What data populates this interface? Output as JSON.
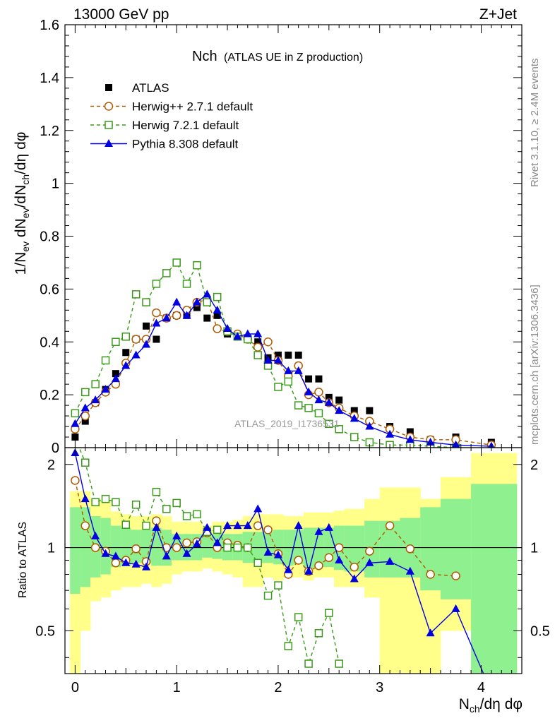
{
  "header": {
    "left": "13000 GeV pp",
    "right": "Z+Jet"
  },
  "title": {
    "main": "Nch",
    "sub": "(ATLAS UE in Z production)"
  },
  "side_labels": {
    "rivet": "Rivet 3.1.10, ≥ 2.4M events",
    "mcplots": "mcplots.cern.ch [arXiv:1306.3436]"
  },
  "watermark": "ATLAS_2019_I1736531",
  "chart_data": [
    {
      "type": "scatter",
      "panel": "main",
      "ylabel": "1/N_ev dN_ev/dN_ch/dη dφ",
      "xlim": [
        -0.1,
        4.4
      ],
      "ylim": [
        0,
        1.6
      ],
      "y_ticks": [
        "0",
        "0.2",
        "0.4",
        "0.6",
        "0.8",
        "1",
        "1.2",
        "1.4",
        "1.6"
      ],
      "legend_position": "top-left",
      "series": [
        {
          "name": "ATLAS",
          "color": "#000000",
          "marker": "filled-square",
          "x": [
            0.0,
            0.1,
            0.2,
            0.3,
            0.4,
            0.5,
            0.6,
            0.7,
            0.8,
            0.9,
            1.0,
            1.1,
            1.2,
            1.3,
            1.4,
            1.5,
            1.6,
            1.7,
            1.8,
            1.9,
            2.0,
            2.1,
            2.2,
            2.3,
            2.4,
            2.5,
            2.6,
            2.75,
            2.9,
            3.1,
            3.3,
            3.5,
            3.75,
            4.1
          ],
          "y": [
            0.04,
            0.1,
            0.17,
            0.22,
            0.28,
            0.36,
            0.41,
            0.46,
            0.41,
            0.49,
            0.5,
            0.5,
            0.53,
            0.49,
            0.5,
            0.43,
            0.42,
            0.41,
            0.4,
            0.34,
            0.35,
            0.35,
            0.35,
            0.26,
            0.26,
            0.19,
            0.18,
            0.14,
            0.14,
            0.08,
            0.06,
            0.03,
            0.04,
            0.02
          ]
        },
        {
          "name": "Herwig++ 2.7.1 default",
          "color": "#b05a00",
          "marker": "open-circle",
          "line": "dashed",
          "x": [
            0.0,
            0.1,
            0.2,
            0.3,
            0.4,
            0.5,
            0.6,
            0.7,
            0.8,
            0.9,
            1.0,
            1.1,
            1.2,
            1.3,
            1.4,
            1.5,
            1.6,
            1.7,
            1.8,
            1.9,
            2.0,
            2.1,
            2.2,
            2.3,
            2.4,
            2.5,
            2.6,
            2.75,
            2.9,
            3.1,
            3.3,
            3.5,
            3.75,
            4.1
          ],
          "y": [
            0.07,
            0.12,
            0.17,
            0.21,
            0.24,
            0.32,
            0.41,
            0.41,
            0.51,
            0.49,
            0.5,
            0.52,
            0.55,
            0.56,
            0.45,
            0.44,
            0.43,
            0.41,
            0.38,
            0.4,
            0.33,
            0.27,
            0.31,
            0.2,
            0.21,
            0.17,
            0.15,
            0.12,
            0.1,
            0.07,
            0.04,
            0.03,
            0.03,
            0.01
          ]
        },
        {
          "name": "Herwig 7.2.1 default",
          "color": "#3a9a1a",
          "marker": "open-square",
          "line": "dashed",
          "x": [
            0.0,
            0.1,
            0.2,
            0.3,
            0.4,
            0.5,
            0.6,
            0.7,
            0.8,
            0.9,
            1.0,
            1.1,
            1.2,
            1.3,
            1.4,
            1.5,
            1.6,
            1.7,
            1.8,
            1.9,
            2.0,
            2.1,
            2.2,
            2.3,
            2.4,
            2.5,
            2.6,
            2.75,
            2.9,
            3.1,
            3.3,
            3.5,
            3.75
          ],
          "y": [
            0.13,
            0.21,
            0.24,
            0.33,
            0.4,
            0.42,
            0.58,
            0.55,
            0.62,
            0.66,
            0.7,
            0.62,
            0.69,
            0.55,
            0.57,
            0.44,
            0.42,
            0.41,
            0.35,
            0.31,
            0.23,
            0.25,
            0.16,
            0.15,
            0.13,
            0.09,
            0.07,
            0.04,
            0.02,
            0.01,
            0.01,
            0.005,
            0.0
          ]
        },
        {
          "name": "Pythia 8.308 default",
          "color": "#0000e0",
          "marker": "filled-triangle",
          "line": "solid",
          "x": [
            0.0,
            0.1,
            0.2,
            0.3,
            0.4,
            0.5,
            0.6,
            0.7,
            0.8,
            0.9,
            1.0,
            1.1,
            1.2,
            1.3,
            1.4,
            1.5,
            1.6,
            1.7,
            1.8,
            1.9,
            2.0,
            2.1,
            2.2,
            2.3,
            2.4,
            2.5,
            2.6,
            2.75,
            2.9,
            3.1,
            3.3,
            3.5,
            3.75,
            4.1
          ],
          "y": [
            0.09,
            0.15,
            0.18,
            0.22,
            0.26,
            0.31,
            0.35,
            0.39,
            0.47,
            0.49,
            0.55,
            0.5,
            0.55,
            0.58,
            0.52,
            0.45,
            0.42,
            0.43,
            0.43,
            0.33,
            0.33,
            0.29,
            0.29,
            0.21,
            0.18,
            0.17,
            0.14,
            0.11,
            0.08,
            0.05,
            0.03,
            0.02,
            0.01,
            0.005
          ]
        }
      ]
    },
    {
      "type": "line",
      "panel": "ratio",
      "ylabel": "Ratio to ATLAS",
      "xlabel": "N_ch/dη dφ",
      "xlim": [
        -0.1,
        4.4
      ],
      "ylim": [
        0.35,
        2.3
      ],
      "y_ticks": [
        "0.5",
        "1",
        "2"
      ],
      "x_ticks": [
        "0",
        "1",
        "2",
        "3",
        "4"
      ],
      "reference": 1,
      "bands": {
        "x_edges": [
          -0.05,
          0.05,
          0.15,
          0.25,
          0.35,
          0.45,
          0.55,
          0.65,
          0.75,
          0.85,
          0.95,
          1.05,
          1.15,
          1.25,
          1.35,
          1.45,
          1.55,
          1.65,
          1.75,
          1.85,
          1.95,
          2.05,
          2.15,
          2.25,
          2.35,
          2.45,
          2.55,
          2.65,
          2.85,
          3.0,
          3.2,
          3.4,
          3.6,
          3.9,
          4.35
        ],
        "green_low": [
          0.68,
          0.72,
          0.78,
          0.8,
          0.85,
          0.86,
          0.88,
          0.88,
          0.86,
          0.86,
          0.9,
          0.9,
          0.9,
          0.92,
          0.91,
          0.9,
          0.9,
          0.88,
          0.88,
          0.88,
          0.87,
          0.86,
          0.87,
          0.84,
          0.85,
          0.85,
          0.83,
          0.82,
          0.78,
          0.78,
          0.78,
          0.7,
          0.65,
          0.35
        ],
        "green_high": [
          1.4,
          1.4,
          1.3,
          1.28,
          1.2,
          1.18,
          1.16,
          1.16,
          1.18,
          1.16,
          1.12,
          1.12,
          1.12,
          1.1,
          1.12,
          1.12,
          1.12,
          1.14,
          1.14,
          1.14,
          1.16,
          1.16,
          1.16,
          1.18,
          1.18,
          1.18,
          1.2,
          1.2,
          1.25,
          1.25,
          1.28,
          1.4,
          1.5,
          1.7
        ],
        "yellow_low": [
          0.35,
          0.5,
          0.64,
          0.66,
          0.7,
          0.72,
          0.72,
          0.74,
          0.72,
          0.74,
          0.8,
          0.82,
          0.82,
          0.84,
          0.82,
          0.8,
          0.78,
          0.72,
          0.72,
          0.78,
          0.76,
          0.78,
          0.78,
          0.76,
          0.78,
          0.78,
          0.72,
          0.72,
          0.66,
          0.35,
          0.35,
          0.35,
          0.5,
          0.35
        ],
        "yellow_high": [
          1.6,
          1.6,
          1.5,
          1.48,
          1.35,
          1.32,
          1.3,
          1.3,
          1.32,
          1.3,
          1.24,
          1.24,
          1.24,
          1.2,
          1.24,
          1.24,
          1.26,
          1.3,
          1.32,
          1.32,
          1.32,
          1.3,
          1.3,
          1.34,
          1.34,
          1.34,
          1.36,
          1.38,
          1.5,
          1.65,
          1.65,
          1.5,
          1.8,
          2.2
        ]
      },
      "series": [
        {
          "name": "Herwig++ 2.7.1 default",
          "color": "#b05a00",
          "marker": "open-circle",
          "line": "dashed",
          "x": [
            0.0,
            0.1,
            0.2,
            0.3,
            0.4,
            0.5,
            0.6,
            0.7,
            0.8,
            0.9,
            1.0,
            1.1,
            1.2,
            1.3,
            1.4,
            1.5,
            1.6,
            1.7,
            1.8,
            1.9,
            2.0,
            2.1,
            2.2,
            2.3,
            2.4,
            2.5,
            2.6,
            2.75,
            2.9,
            3.1,
            3.3,
            3.5,
            3.75
          ],
          "y": [
            1.75,
            1.2,
            1.0,
            0.97,
            0.88,
            0.9,
            0.99,
            0.89,
            1.25,
            1.0,
            1.0,
            1.04,
            1.05,
            1.13,
            1.0,
            1.04,
            1.02,
            1.0,
            1.2,
            1.16,
            0.95,
            0.8,
            0.9,
            0.82,
            0.86,
            0.92,
            1.0,
            0.85,
            0.97,
            1.2,
            0.99,
            0.8,
            0.79
          ]
        },
        {
          "name": "Herwig 7.2.1 default",
          "color": "#3a9a1a",
          "marker": "open-square",
          "line": "dashed",
          "x": [
            0.0,
            0.1,
            0.2,
            0.3,
            0.4,
            0.5,
            0.6,
            0.7,
            0.8,
            0.9,
            1.0,
            1.1,
            1.2,
            1.3,
            1.4,
            1.5,
            1.6,
            1.7,
            1.8,
            1.9,
            2.0,
            2.1,
            2.2,
            2.3,
            2.4,
            2.5,
            2.6
          ],
          "y": [
            2.5,
            2.03,
            1.46,
            1.5,
            1.46,
            1.21,
            1.43,
            1.2,
            1.59,
            1.38,
            1.45,
            1.3,
            1.32,
            1.14,
            1.16,
            1.0,
            1.0,
            1.0,
            0.88,
            0.67,
            0.73,
            0.44,
            0.56,
            0.38,
            0.49,
            0.58,
            0.38
          ]
        },
        {
          "name": "Pythia 8.308 default",
          "color": "#0000e0",
          "marker": "filled-triangle",
          "line": "solid",
          "x": [
            0.0,
            0.1,
            0.2,
            0.3,
            0.4,
            0.5,
            0.6,
            0.7,
            0.8,
            0.9,
            1.0,
            1.1,
            1.2,
            1.3,
            1.4,
            1.5,
            1.6,
            1.7,
            1.8,
            1.9,
            2.0,
            2.1,
            2.2,
            2.3,
            2.4,
            2.5,
            2.6,
            2.75,
            2.9,
            3.1,
            3.3,
            3.5,
            3.75,
            4.1
          ],
          "y": [
            2.2,
            1.5,
            1.1,
            0.95,
            0.93,
            0.88,
            0.87,
            0.85,
            1.18,
            0.93,
            1.1,
            0.95,
            1.03,
            1.18,
            1.04,
            1.2,
            1.2,
            1.2,
            1.38,
            0.96,
            0.94,
            0.83,
            1.2,
            0.82,
            1.14,
            1.18,
            0.9,
            0.77,
            0.88,
            0.89,
            0.82,
            0.49,
            0.6,
            0.3
          ]
        }
      ]
    }
  ]
}
